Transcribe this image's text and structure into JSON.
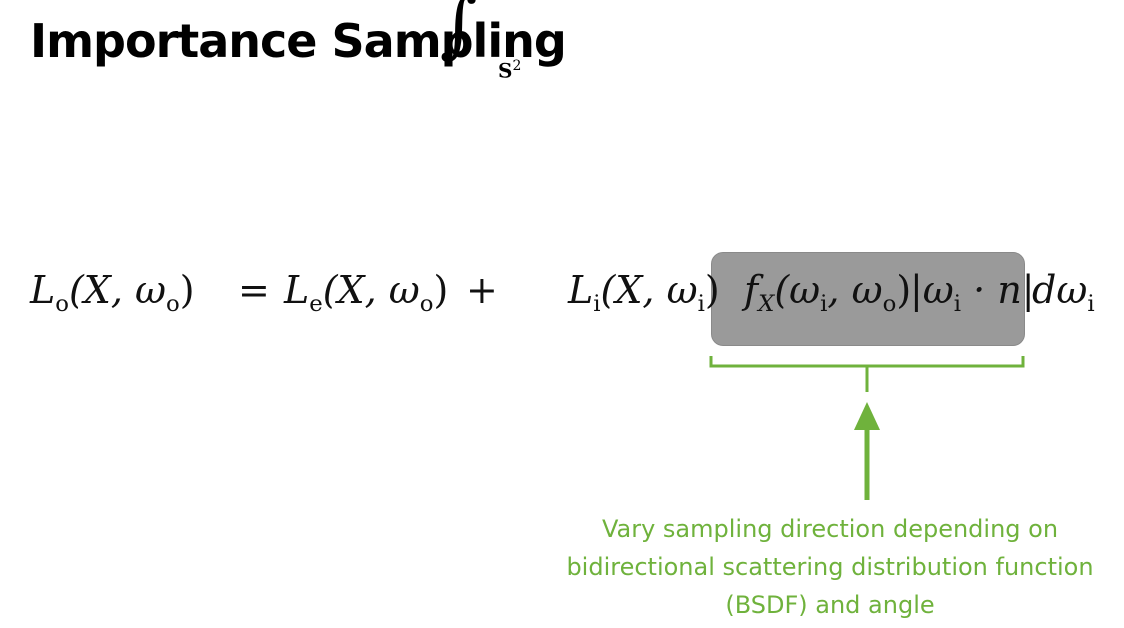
{
  "slide": {
    "title": "Importance Sampling"
  },
  "equation": {
    "lhs": "L",
    "lhs_sub": "o",
    "lhs_args": "(X, ω",
    "lhs_args_sub": "o",
    "equals": "=",
    "emitted": "L",
    "emitted_sub": "e",
    "emitted_args": "(X, ω",
    "emitted_args_sub": "o",
    "plus": "+",
    "integral_domain": "S",
    "integral_domain_sup": "2",
    "incident": "L",
    "incident_sub": "i",
    "incident_args": "(X, ω",
    "incident_args_sub": "i",
    "bsdf": "f",
    "bsdf_sub": "X",
    "bsdf_args_open": "(ω",
    "bsdf_args_sub1": "i",
    "bsdf_args_mid": ", ω",
    "bsdf_args_sub2": "o",
    "cos_open": "|ω",
    "cos_sub": "i",
    "cos_rest": " · n|",
    "differential": "dω",
    "differential_sub": "i"
  },
  "annotation": {
    "line1": "Vary sampling direction depending on",
    "line2": "bidirectional scattering distribution function",
    "line3": "(BSDF) and angle"
  },
  "colors": {
    "accent": "#6fb23c",
    "highlight": "#9a9a9a",
    "text": "#000000"
  }
}
